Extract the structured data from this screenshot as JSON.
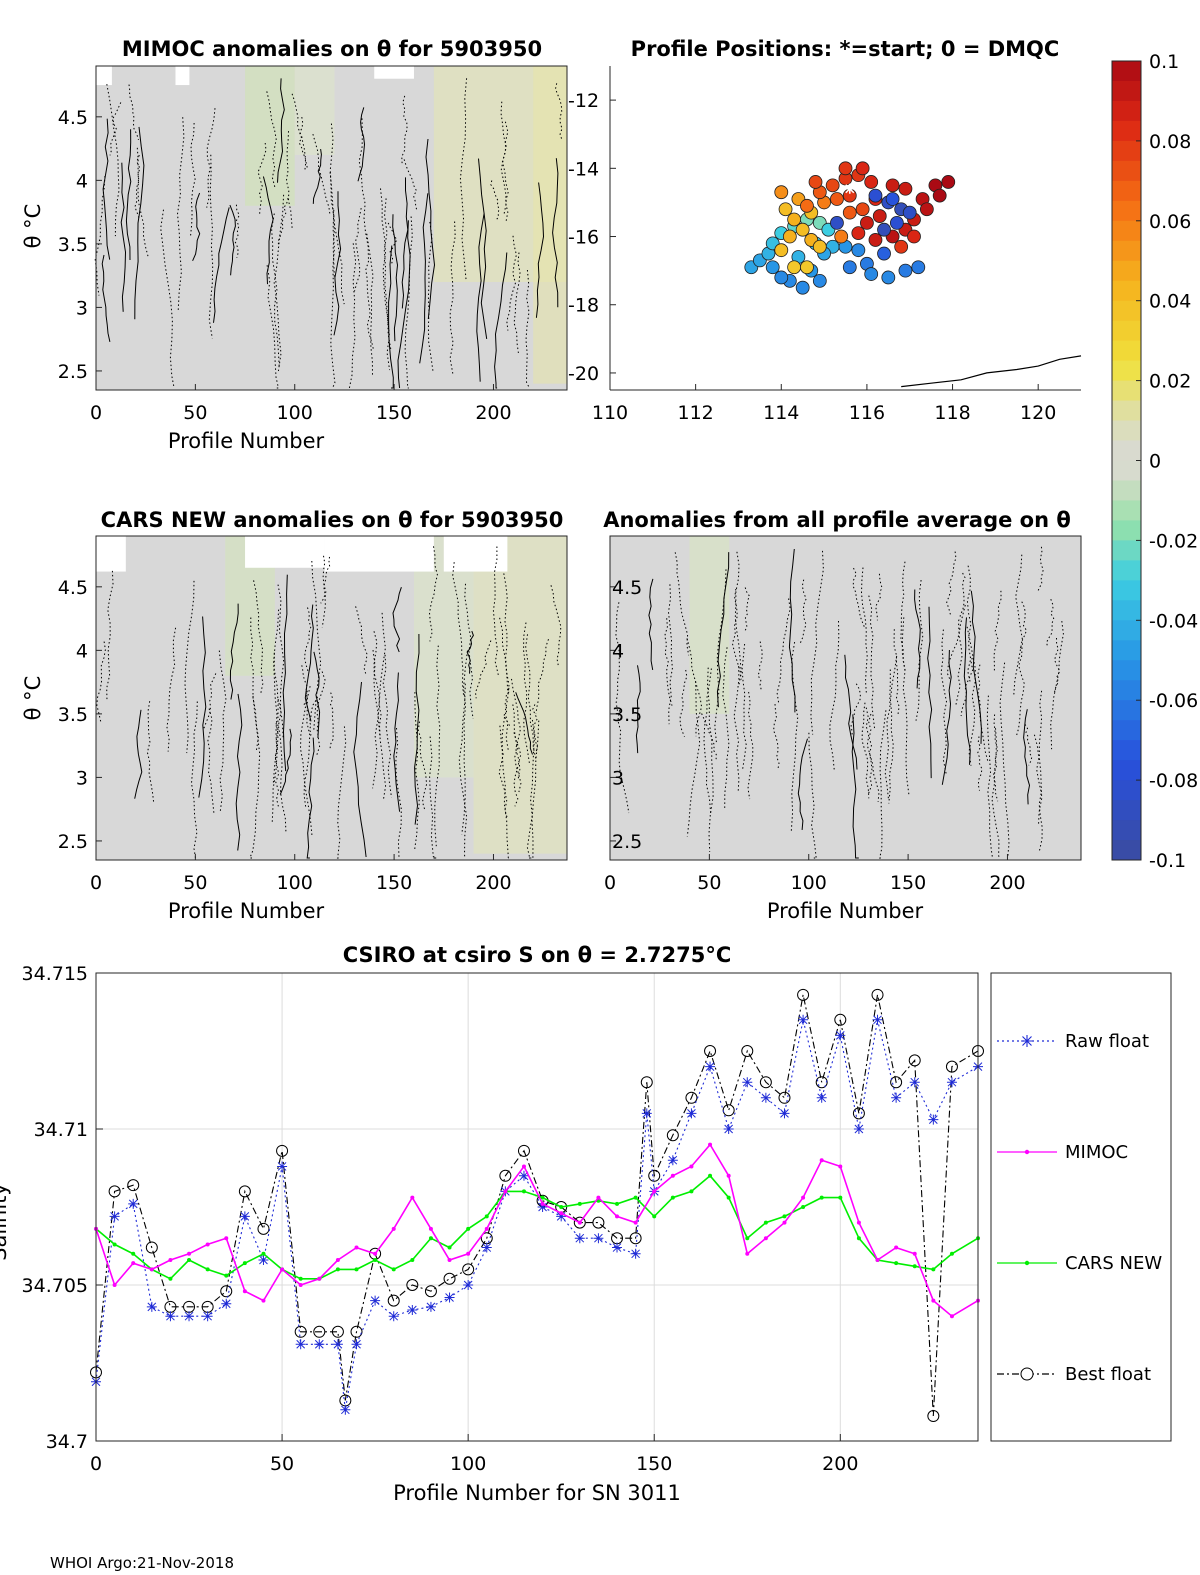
{
  "footer": "WHOI Argo:21-Nov-2018",
  "colors": {
    "field_gray": "#d8d8d8",
    "raw_float": "#1f2bd6",
    "mimoc": "#ff00ff",
    "cars_new": "#00ee00",
    "best_float": "#000000"
  },
  "chart_data": [
    {
      "type": "heatmap",
      "id": "mimoc",
      "title": "MIMOC anomalies on θ  for 5903950",
      "xlabel": "Profile Number",
      "ylabel": "θ °C",
      "xlim": [
        0,
        237
      ],
      "ylim": [
        2.35,
        4.9
      ],
      "xticks": [
        "0",
        "50",
        "100",
        "150",
        "200"
      ],
      "xtick_values": [
        0,
        50,
        100,
        150,
        200
      ],
      "yticks": [
        "2.5",
        "3",
        "3.5",
        "4",
        "4.5"
      ],
      "ytick_values": [
        2.5,
        3,
        3.5,
        4,
        4.5
      ]
    },
    {
      "type": "scatter",
      "id": "positions",
      "title": "Profile Positions: *=start; 0 = DMQC",
      "xlim": [
        110,
        121
      ],
      "ylim": [
        -20.5,
        -11
      ],
      "xticks": [
        "110",
        "112",
        "114",
        "116",
        "118",
        "120"
      ],
      "xtick_values": [
        110,
        112,
        114,
        116,
        118,
        120
      ],
      "yticks": [
        "-12",
        "-14",
        "-16",
        "-18",
        "-20"
      ],
      "ytick_values": [
        -12,
        -14,
        -16,
        -18,
        -20
      ],
      "start": [
        115.6,
        -14.6
      ],
      "coastline": [
        [
          116.8,
          -20.4
        ],
        [
          117.5,
          -20.3
        ],
        [
          118.2,
          -20.2
        ],
        [
          118.8,
          -20.0
        ],
        [
          119.5,
          -19.9
        ],
        [
          120.0,
          -19.8
        ],
        [
          120.5,
          -19.6
        ],
        [
          121.0,
          -19.5
        ]
      ],
      "points": [
        [
          113.3,
          -16.9,
          -0.045
        ],
        [
          113.5,
          -16.7,
          -0.045
        ],
        [
          113.7,
          -16.5,
          -0.04
        ],
        [
          113.8,
          -16.2,
          -0.035
        ],
        [
          114.0,
          -15.9,
          -0.03
        ],
        [
          114.3,
          -15.7,
          -0.025
        ],
        [
          114.6,
          -15.5,
          -0.02
        ],
        [
          114.9,
          -15.6,
          -0.02
        ],
        [
          114.2,
          -17.3,
          -0.055
        ],
        [
          114.5,
          -17.5,
          -0.055
        ],
        [
          114.9,
          -17.3,
          -0.055
        ],
        [
          114.7,
          -17.0,
          -0.05
        ],
        [
          114.0,
          -17.2,
          -0.055
        ],
        [
          113.8,
          -16.9,
          -0.05
        ],
        [
          114.4,
          -16.6,
          -0.04
        ],
        [
          115.2,
          -16.3,
          -0.04
        ],
        [
          115.0,
          -16.5,
          -0.045
        ],
        [
          114.8,
          -16.2,
          -0.035
        ],
        [
          115.1,
          -15.8,
          -0.03
        ],
        [
          114.0,
          -16.4,
          0.04
        ],
        [
          114.2,
          -16.0,
          0.045
        ],
        [
          114.5,
          -15.8,
          0.04
        ],
        [
          114.7,
          -16.1,
          0.045
        ],
        [
          114.9,
          -16.3,
          0.04
        ],
        [
          114.3,
          -16.9,
          0.035
        ],
        [
          114.6,
          -16.9,
          0.035
        ],
        [
          114.1,
          -15.2,
          0.04
        ],
        [
          114.4,
          -14.9,
          0.05
        ],
        [
          114.0,
          -14.7,
          0.055
        ],
        [
          114.3,
          -15.5,
          0.045
        ],
        [
          114.7,
          -15.3,
          0.04
        ],
        [
          115.0,
          -15.0,
          0.06
        ],
        [
          115.3,
          -14.9,
          0.07
        ],
        [
          115.5,
          -14.3,
          0.08
        ],
        [
          115.8,
          -14.2,
          0.08
        ],
        [
          116.1,
          -14.4,
          0.085
        ],
        [
          115.2,
          -14.5,
          0.075
        ],
        [
          114.9,
          -14.7,
          0.07
        ],
        [
          115.6,
          -14.8,
          0.08
        ],
        [
          116.2,
          -14.9,
          0.085
        ],
        [
          116.6,
          -14.5,
          0.09
        ],
        [
          116.9,
          -14.6,
          0.09
        ],
        [
          117.3,
          -14.9,
          0.095
        ],
        [
          117.6,
          -14.5,
          0.1
        ],
        [
          117.9,
          -14.4,
          0.1
        ],
        [
          117.7,
          -14.8,
          0.1
        ],
        [
          117.4,
          -15.2,
          0.095
        ],
        [
          117.1,
          -15.5,
          0.09
        ],
        [
          116.8,
          -15.2,
          -0.09
        ],
        [
          116.5,
          -15.0,
          -0.085
        ],
        [
          116.3,
          -15.4,
          0.09
        ],
        [
          116.0,
          -15.6,
          0.09
        ],
        [
          115.8,
          -15.9,
          0.085
        ],
        [
          116.2,
          -16.1,
          0.09
        ],
        [
          116.6,
          -16.0,
          0.095
        ],
        [
          116.9,
          -15.8,
          0.09
        ],
        [
          117.1,
          -16.0,
          0.085
        ],
        [
          116.8,
          -16.3,
          0.08
        ],
        [
          116.4,
          -16.5,
          -0.07
        ],
        [
          116.0,
          -16.8,
          -0.06
        ],
        [
          115.6,
          -16.9,
          -0.06
        ],
        [
          116.1,
          -17.1,
          -0.055
        ],
        [
          116.5,
          -17.2,
          -0.055
        ],
        [
          116.9,
          -17.0,
          -0.06
        ],
        [
          117.2,
          -16.9,
          -0.06
        ],
        [
          115.5,
          -16.3,
          -0.05
        ],
        [
          115.8,
          -16.4,
          -0.055
        ],
        [
          116.7,
          -15.6,
          -0.08
        ],
        [
          117.0,
          -15.3,
          -0.085
        ],
        [
          116.4,
          -15.8,
          -0.09
        ],
        [
          116.2,
          -14.8,
          -0.08
        ],
        [
          116.6,
          -14.9,
          -0.075
        ],
        [
          115.3,
          -15.6,
          -0.085
        ],
        [
          115.6,
          -15.3,
          0.07
        ],
        [
          115.9,
          -15.2,
          0.075
        ],
        [
          115.4,
          -16.0,
          0.06
        ],
        [
          114.6,
          -15.1,
          0.065
        ],
        [
          114.8,
          -14.4,
          0.075
        ],
        [
          115.5,
          -14.0,
          0.08
        ],
        [
          115.9,
          -14.0,
          0.085
        ]
      ]
    },
    {
      "type": "heatmap",
      "id": "cars",
      "title": "CARS NEW anomalies on θ for 5903950",
      "xlabel": "Profile Number",
      "ylabel": "θ °C",
      "xlim": [
        0,
        237
      ],
      "ylim": [
        2.35,
        4.9
      ],
      "xticks": [
        "0",
        "50",
        "100",
        "150",
        "200"
      ],
      "xtick_values": [
        0,
        50,
        100,
        150,
        200
      ],
      "yticks": [
        "2.5",
        "3",
        "3.5",
        "4",
        "4.5"
      ],
      "ytick_values": [
        2.5,
        3,
        3.5,
        4,
        4.5
      ]
    },
    {
      "type": "heatmap",
      "id": "allprof",
      "title": "Anomalies from all profile average on θ",
      "xlabel": "Profile Number",
      "xlim": [
        0,
        237
      ],
      "ylim": [
        2.35,
        4.9
      ],
      "xticks": [
        "0",
        "50",
        "100",
        "150",
        "200"
      ],
      "xtick_values": [
        0,
        50,
        100,
        150,
        200
      ],
      "yticks": [
        "2.5",
        "3",
        "3.5",
        "4",
        "4.5"
      ],
      "ytick_values": [
        2.5,
        3,
        3.5,
        4,
        4.5
      ]
    },
    {
      "type": "colorbar",
      "id": "colorbar",
      "range": [
        -0.1,
        0.1
      ],
      "ticks": [
        "0.1",
        "0.08",
        "0.06",
        "0.04",
        "0.02",
        "0",
        "-0.02",
        "-0.04",
        "-0.06",
        "-0.08",
        "-0.1"
      ],
      "tick_values": [
        0.1,
        0.08,
        0.06,
        0.04,
        0.02,
        0,
        -0.02,
        -0.04,
        -0.06,
        -0.08,
        -0.1
      ]
    },
    {
      "type": "line",
      "id": "salinity",
      "title": "CSIRO at csiro S on θ = 2.7275°C",
      "xlabel": "Profile Number for SN 3011",
      "ylabel": "Salinity",
      "xlim": [
        0,
        237
      ],
      "ylim": [
        34.7,
        34.715
      ],
      "xticks": [
        "0",
        "50",
        "100",
        "150",
        "200"
      ],
      "xtick_values": [
        0,
        50,
        100,
        150,
        200
      ],
      "yticks": [
        "34.7",
        "34.705",
        "34.71",
        "34.715"
      ],
      "ytick_values": [
        34.7,
        34.705,
        34.71,
        34.715
      ],
      "grid": true,
      "legend_position": "right-outside",
      "series": [
        {
          "name": "Raw float",
          "marker": "*",
          "style": "dotted",
          "x": [
            0,
            5,
            10,
            15,
            20,
            25,
            30,
            35,
            40,
            45,
            50,
            55,
            60,
            65,
            67,
            70,
            75,
            80,
            85,
            90,
            95,
            100,
            105,
            110,
            115,
            120,
            125,
            130,
            135,
            140,
            145,
            148,
            150,
            155,
            160,
            165,
            170,
            175,
            180,
            185,
            190,
            195,
            200,
            205,
            210,
            215,
            220,
            225,
            230,
            237
          ],
          "values": [
            34.7019,
            34.7072,
            34.7076,
            34.7043,
            34.704,
            34.704,
            34.704,
            34.7044,
            34.7072,
            34.7058,
            34.7088,
            34.7031,
            34.7031,
            34.7031,
            34.701,
            34.7031,
            34.7045,
            34.704,
            34.7042,
            34.7043,
            34.7046,
            34.705,
            34.7062,
            34.708,
            34.7085,
            34.7075,
            34.7072,
            34.7065,
            34.7065,
            34.7062,
            34.706,
            34.7105,
            34.708,
            34.709,
            34.7105,
            34.712,
            34.71,
            34.7115,
            34.711,
            34.7105,
            34.7135,
            34.711,
            34.713,
            34.71,
            34.7135,
            34.711,
            34.7115,
            34.7103,
            34.7115,
            34.712
          ]
        },
        {
          "name": "MIMOC",
          "marker": ".",
          "style": "solid",
          "x": [
            0,
            5,
            10,
            15,
            20,
            25,
            30,
            35,
            40,
            45,
            50,
            55,
            60,
            65,
            70,
            75,
            80,
            85,
            90,
            95,
            100,
            105,
            110,
            115,
            120,
            125,
            130,
            135,
            140,
            145,
            150,
            155,
            160,
            165,
            170,
            175,
            180,
            185,
            190,
            195,
            200,
            205,
            210,
            215,
            220,
            225,
            230,
            237
          ],
          "values": [
            34.7068,
            34.705,
            34.7057,
            34.7055,
            34.7058,
            34.706,
            34.7063,
            34.7065,
            34.7048,
            34.7045,
            34.7055,
            34.705,
            34.7052,
            34.7058,
            34.7062,
            34.706,
            34.7068,
            34.7078,
            34.7068,
            34.7058,
            34.706,
            34.7068,
            34.708,
            34.7088,
            34.7076,
            34.7073,
            34.707,
            34.7078,
            34.7072,
            34.707,
            34.708,
            34.7085,
            34.7088,
            34.7095,
            34.7085,
            34.706,
            34.7065,
            34.707,
            34.7078,
            34.709,
            34.7088,
            34.707,
            34.7058,
            34.7062,
            34.706,
            34.7045,
            34.704,
            34.7045
          ]
        },
        {
          "name": "CARS NEW",
          "marker": ".",
          "style": "solid",
          "x": [
            0,
            5,
            10,
            15,
            20,
            25,
            30,
            35,
            40,
            45,
            50,
            55,
            60,
            65,
            70,
            75,
            80,
            85,
            90,
            95,
            100,
            105,
            110,
            115,
            120,
            125,
            130,
            135,
            140,
            145,
            150,
            155,
            160,
            165,
            170,
            175,
            180,
            185,
            190,
            195,
            200,
            205,
            210,
            215,
            220,
            225,
            230,
            237
          ],
          "values": [
            34.7068,
            34.7063,
            34.706,
            34.7055,
            34.7052,
            34.7058,
            34.7055,
            34.7053,
            34.7057,
            34.706,
            34.7055,
            34.7052,
            34.7052,
            34.7055,
            34.7055,
            34.7058,
            34.7055,
            34.7058,
            34.7065,
            34.7062,
            34.7068,
            34.7072,
            34.708,
            34.708,
            34.7078,
            34.7075,
            34.7076,
            34.7077,
            34.7076,
            34.7078,
            34.7072,
            34.7078,
            34.708,
            34.7085,
            34.7078,
            34.7065,
            34.707,
            34.7072,
            34.7075,
            34.7078,
            34.7078,
            34.7065,
            34.7058,
            34.7057,
            34.7056,
            34.7055,
            34.706,
            34.7065
          ]
        },
        {
          "name": "Best float",
          "marker": "o",
          "style": "dashdot",
          "x": [
            0,
            5,
            10,
            15,
            20,
            25,
            30,
            35,
            40,
            45,
            50,
            55,
            60,
            65,
            67,
            70,
            75,
            80,
            85,
            90,
            95,
            100,
            105,
            110,
            115,
            120,
            125,
            130,
            135,
            140,
            145,
            148,
            150,
            155,
            160,
            165,
            170,
            175,
            180,
            185,
            190,
            195,
            200,
            205,
            210,
            215,
            220,
            225,
            230,
            237
          ],
          "values": [
            34.7022,
            34.708,
            34.7082,
            34.7062,
            34.7043,
            34.7043,
            34.7043,
            34.7048,
            34.708,
            34.7068,
            34.7093,
            34.7035,
            34.7035,
            34.7035,
            34.7013,
            34.7035,
            34.706,
            34.7045,
            34.705,
            34.7048,
            34.7052,
            34.7055,
            34.7065,
            34.7085,
            34.7093,
            34.7077,
            34.7075,
            34.707,
            34.707,
            34.7065,
            34.7065,
            34.7115,
            34.7085,
            34.7098,
            34.711,
            34.7125,
            34.7106,
            34.7125,
            34.7115,
            34.711,
            34.7143,
            34.7115,
            34.7135,
            34.7105,
            34.7143,
            34.7115,
            34.7122,
            34.7008,
            34.712,
            34.7125
          ]
        }
      ]
    }
  ]
}
